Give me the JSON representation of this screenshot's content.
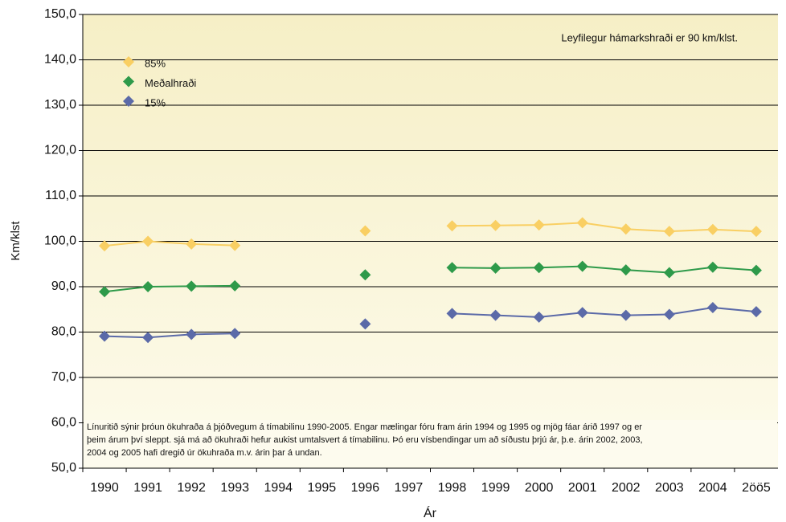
{
  "chart_data": {
    "type": "line",
    "xlabel": "Ár",
    "ylabel": "Km/klst",
    "annotation": "Leyfilegur hámarkshraði er 90 km/klst.",
    "note": [
      "Línuritið sýnir þróun ökuhraða á þjóðvegum á tímabilinu 1990-2005. Engar mælingar fóru fram árin 1994 og 1995 og mjög fáar árið 1997 og er",
      "þeim árum því sleppt. sjá má að ökuhraði hefur aukist umtalsvert á tímabilinu. Þó eru vísbendingar um að síðustu þrjú ár, þ.e. árin 2002, 2003,",
      "2004 og 2005 hafi dregið úr ökuhraða m.v. árin þar á undan."
    ],
    "categories": [
      "1990",
      "1991",
      "1992",
      "1993",
      "1994",
      "1995",
      "1996",
      "1997",
      "1998",
      "1999",
      "2000",
      "2001",
      "2002",
      "2003",
      "2004",
      "2öö5"
    ],
    "series": [
      {
        "name": "85%",
        "color": "#f9cf63",
        "values": [
          99.0,
          100.0,
          99.4,
          99.1,
          null,
          null,
          102.3,
          null,
          103.4,
          103.5,
          103.6,
          104.1,
          102.7,
          102.2,
          102.6,
          102.2
        ]
      },
      {
        "name": "Meðalhraði",
        "color": "#2e9a4a",
        "values": [
          88.9,
          90.0,
          90.1,
          90.2,
          null,
          null,
          92.6,
          null,
          94.2,
          94.1,
          94.2,
          94.5,
          93.7,
          93.1,
          94.3,
          93.6
        ]
      },
      {
        "name": "15%",
        "color": "#5b6aa8",
        "values": [
          79.1,
          78.8,
          79.5,
          79.7,
          null,
          null,
          81.8,
          null,
          84.1,
          83.7,
          83.3,
          84.3,
          83.7,
          83.9,
          85.4,
          84.5
        ]
      }
    ],
    "ylim": [
      50,
      150
    ],
    "yticks": [
      {
        "value": 50,
        "label": "50,0"
      },
      {
        "value": 60,
        "label": "60,0"
      },
      {
        "value": 70,
        "label": "70,0"
      },
      {
        "value": 80,
        "label": "80,0"
      },
      {
        "value": 90,
        "label": "90,0"
      },
      {
        "value": 100,
        "label": "100,0"
      },
      {
        "value": 110,
        "label": "110,0"
      },
      {
        "value": 120,
        "label": "120,0"
      },
      {
        "value": 130,
        "label": "130,0"
      },
      {
        "value": 140,
        "label": "140,0"
      },
      {
        "value": 150,
        "label": "150,0"
      }
    ],
    "grid": true,
    "legend": "upper left"
  }
}
